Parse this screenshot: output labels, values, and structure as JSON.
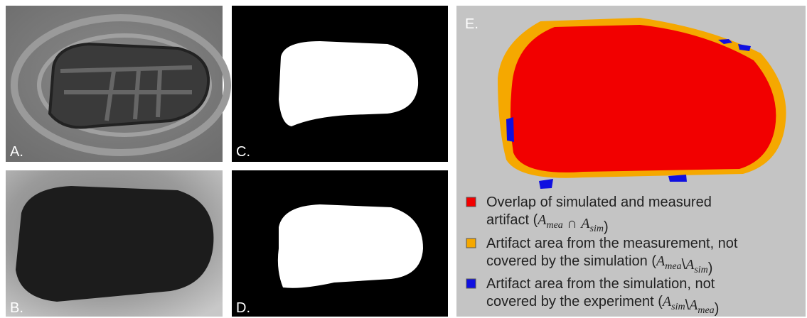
{
  "panels": {
    "a": "A.",
    "b": "B.",
    "c": "C.",
    "d": "D.",
    "e": "E."
  },
  "legend": [
    {
      "lines": [
        [
          "Overlap of simulated and measured"
        ],
        [
          "artifact (",
          {
            "base": "A",
            "sub": "mea"
          },
          " ∩ ",
          {
            "base": "A",
            "sub": "sim"
          },
          ")"
        ]
      ]
    },
    {
      "lines": [
        [
          "Artifact area from the measurement, not"
        ],
        [
          "covered by the simulation (",
          {
            "base": "A",
            "sub": "mea"
          },
          "\\",
          {
            "base": "A",
            "sub": "sim"
          },
          ")"
        ]
      ]
    },
    {
      "lines": [
        [
          "Artifact area from the simulation, not"
        ],
        [
          "covered by the experiment (",
          {
            "base": "A",
            "sub": "sim"
          },
          "\\",
          {
            "base": "A",
            "sub": "mea"
          },
          ")"
        ]
      ]
    }
  ]
}
